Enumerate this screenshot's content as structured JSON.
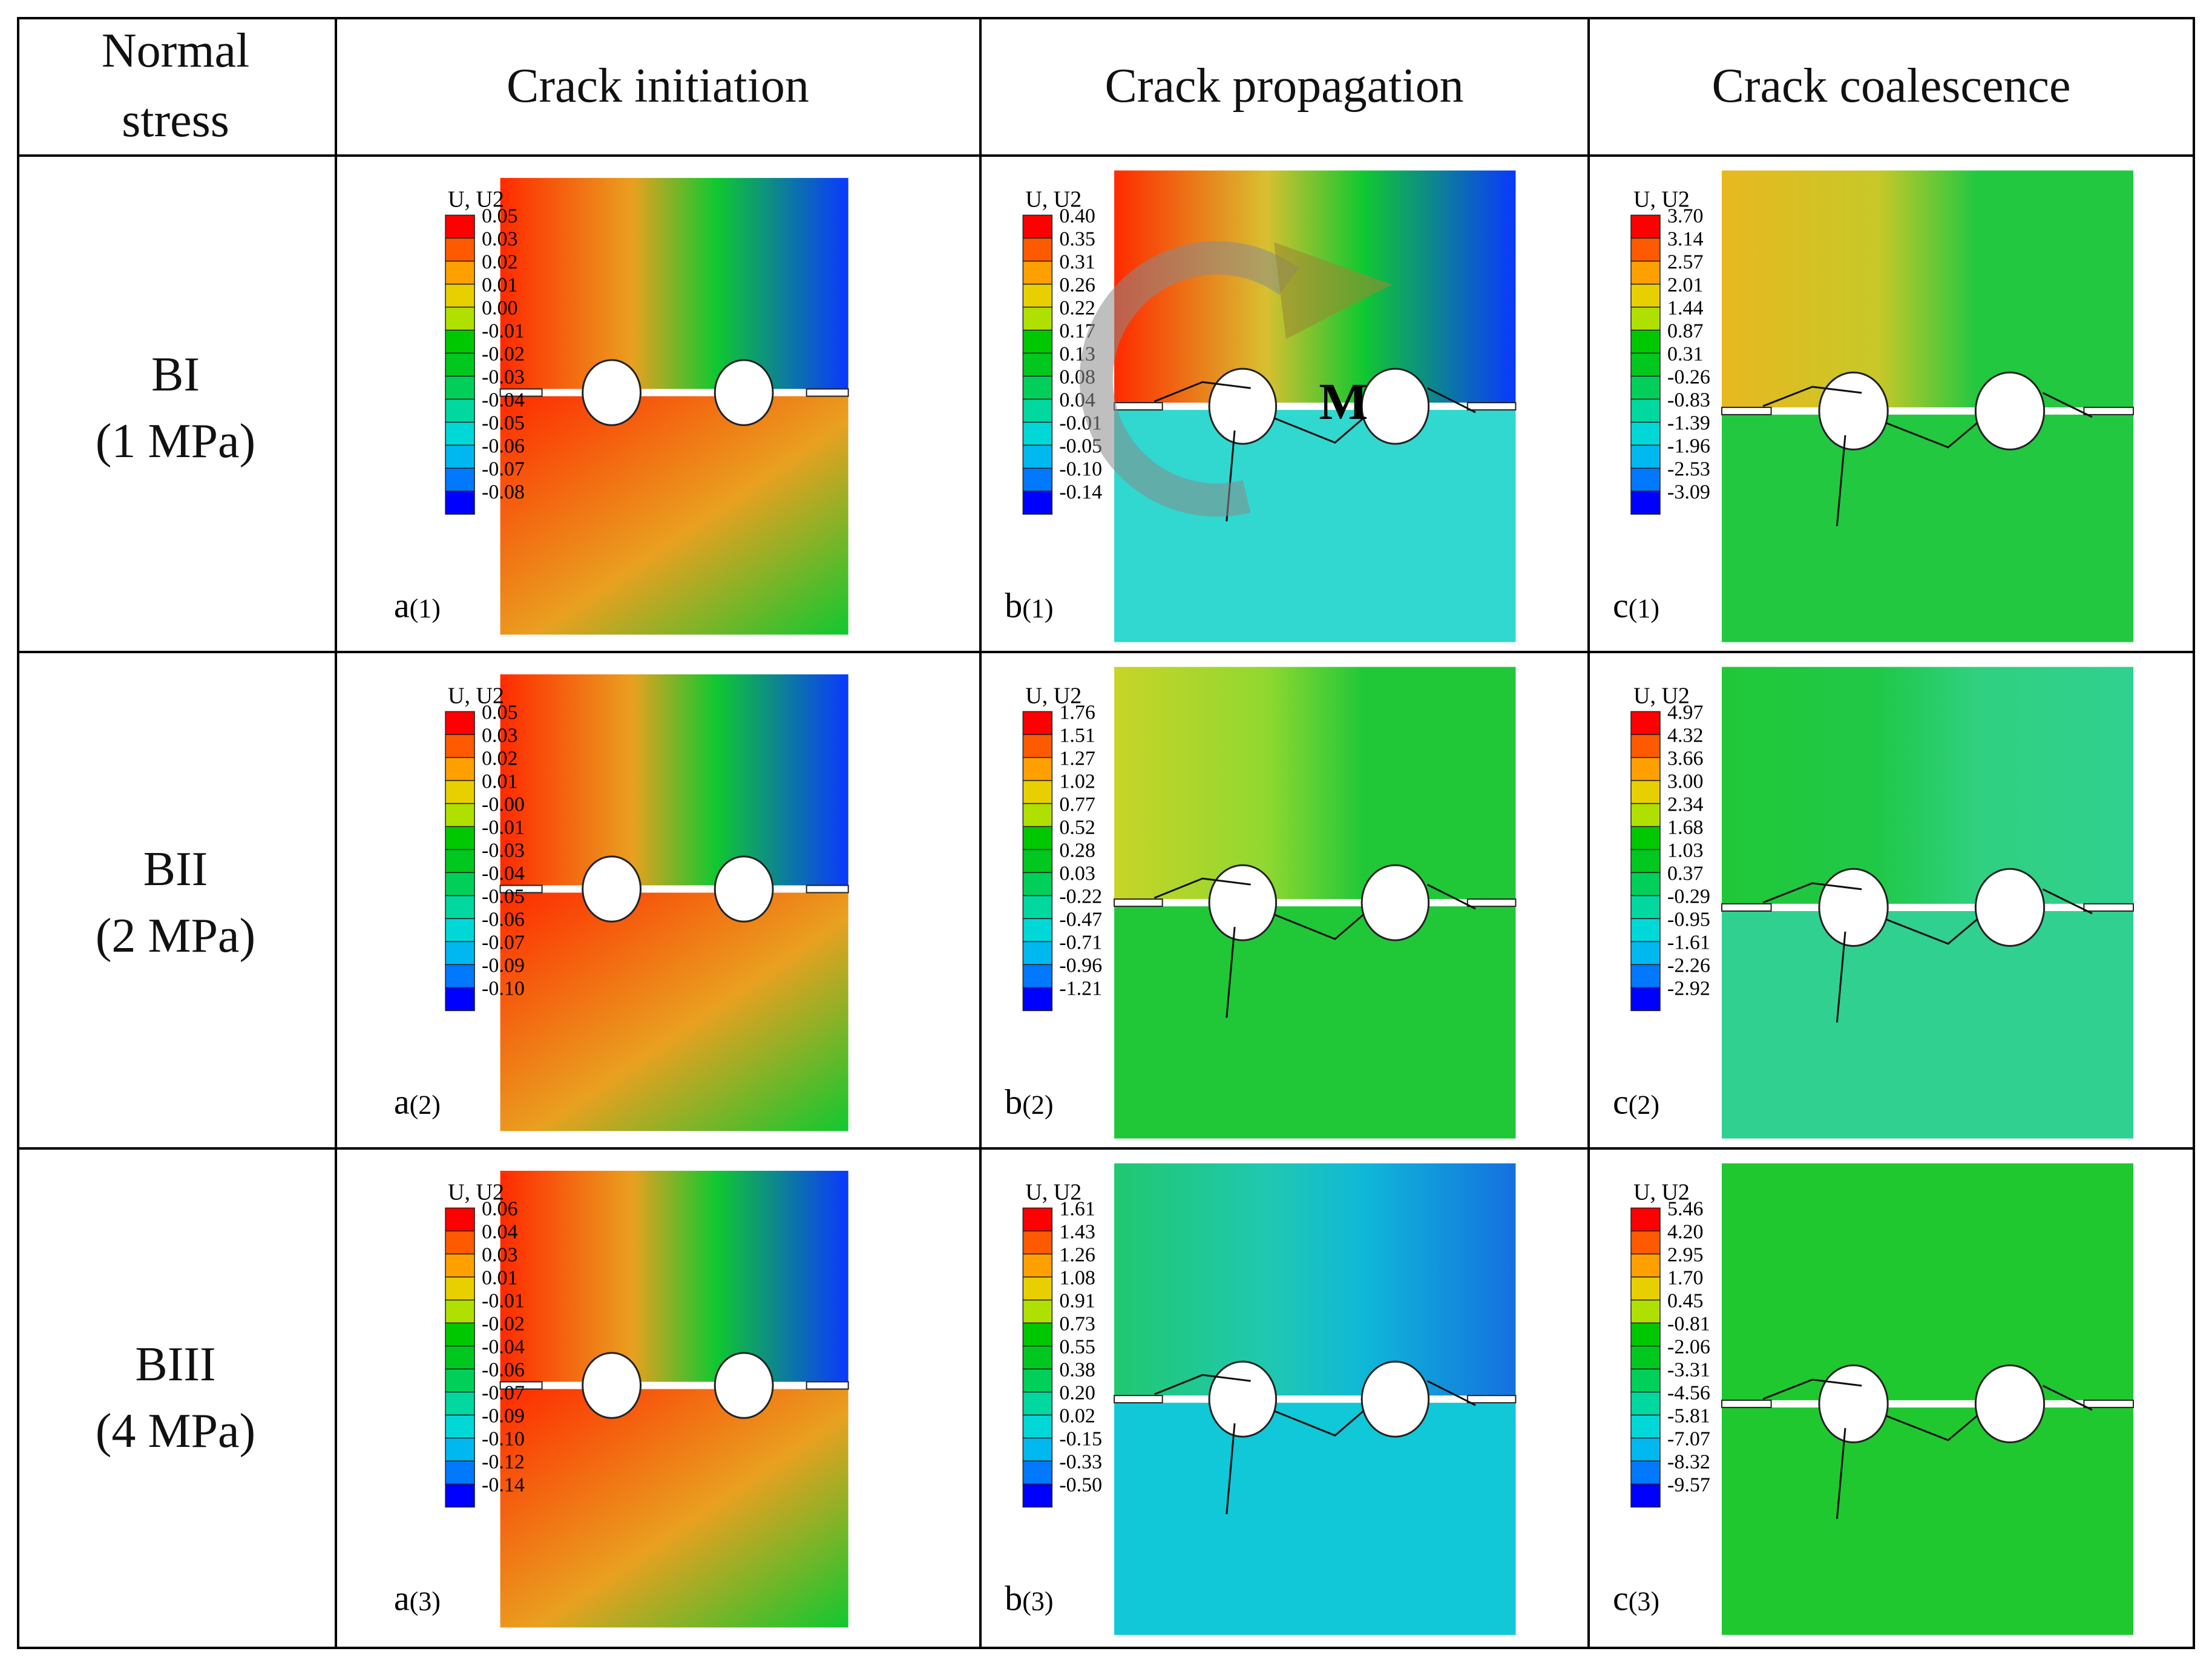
{
  "headers": [
    "Normal stress",
    "Crack initiation",
    "Crack propagation",
    "Crack coalescence"
  ],
  "header_col1_lines": [
    "Normal",
    "stress"
  ],
  "rows": [
    {
      "name": "BI",
      "stress": "(1 MPa)"
    },
    {
      "name": "BII",
      "stress": "(2 MPa)"
    },
    {
      "name": "BIII",
      "stress": "(4 MPa)"
    }
  ],
  "legend_title": "U, U2",
  "moment_label": "M",
  "colorscale": [
    "#ff0000",
    "#ff5a00",
    "#ffa000",
    "#e8d000",
    "#b0e000",
    "#00c800",
    "#00c81e",
    "#00d05a",
    "#00d8a0",
    "#00d8d8",
    "#00b8f0",
    "#0078ff",
    "#0000ff"
  ],
  "panels": [
    {
      "id": "a1",
      "label_letter": "a",
      "label_index": "(1)",
      "colors": [
        "#ff2a00",
        "#e9a020",
        "#10c830",
        "#0a38ff"
      ],
      "legend": [
        "0.05",
        "0.03",
        "0.02",
        "0.01",
        "0.00",
        "-0.01",
        "-0.02",
        "-0.03",
        "-0.04",
        "-0.05",
        "-0.06",
        "-0.07",
        "-0.08"
      ]
    },
    {
      "id": "b1",
      "label_letter": "b",
      "label_index": "(1)",
      "colors": [
        "#ff2a00",
        "#d8c030",
        "#10c830",
        "#0a38ff"
      ],
      "legend": [
        "0.40",
        "0.35",
        "0.31",
        "0.26",
        "0.22",
        "0.17",
        "0.13",
        "0.08",
        "0.04",
        "-0.01",
        "-0.05",
        "-0.10",
        "-0.14"
      ]
    },
    {
      "id": "c1",
      "label_letter": "c",
      "label_index": "(1)",
      "colors": [
        "#e8b820",
        "#c8c828",
        "#22c840",
        "#22c840"
      ],
      "legend": [
        "3.70",
        "3.14",
        "2.57",
        "2.01",
        "1.44",
        "0.87",
        "0.31",
        "-0.26",
        "-0.83",
        "-1.39",
        "-1.96",
        "-2.53",
        "-3.09"
      ]
    },
    {
      "id": "a2",
      "label_letter": "a",
      "label_index": "(2)",
      "colors": [
        "#ff2a00",
        "#e9a020",
        "#10c830",
        "#0a38ff"
      ],
      "legend": [
        "0.05",
        "0.03",
        "0.02",
        "0.01",
        "-0.00",
        "-0.01",
        "-0.03",
        "-0.04",
        "-0.05",
        "-0.06",
        "-0.07",
        "-0.09",
        "-0.10"
      ]
    },
    {
      "id": "b2",
      "label_letter": "b",
      "label_index": "(2)",
      "colors": [
        "#c8d428",
        "#90d830",
        "#20c838",
        "#20c838"
      ],
      "legend": [
        "1.76",
        "1.51",
        "1.27",
        "1.02",
        "0.77",
        "0.52",
        "0.28",
        "0.03",
        "-0.22",
        "-0.47",
        "-0.71",
        "-0.96",
        "-1.21"
      ]
    },
    {
      "id": "c2",
      "label_letter": "c",
      "label_index": "(2)",
      "colors": [
        "#20c838",
        "#20c848",
        "#30d080",
        "#30d090"
      ],
      "legend": [
        "4.97",
        "4.32",
        "3.66",
        "3.00",
        "2.34",
        "1.68",
        "1.03",
        "0.37",
        "-0.29",
        "-0.95",
        "-1.61",
        "-2.26",
        "-2.92"
      ]
    },
    {
      "id": "a3",
      "label_letter": "a",
      "label_index": "(3)",
      "colors": [
        "#ff2a00",
        "#e9a020",
        "#10c830",
        "#0a38ff"
      ],
      "legend": [
        "0.06",
        "0.04",
        "0.03",
        "0.01",
        "-0.01",
        "-0.02",
        "-0.04",
        "-0.06",
        "-0.07",
        "-0.09",
        "-0.10",
        "-0.12",
        "-0.14"
      ]
    },
    {
      "id": "b3",
      "label_letter": "b",
      "label_index": "(3)",
      "colors": [
        "#20c870",
        "#20c8b0",
        "#10b8d8",
        "#1470e0"
      ],
      "legend": [
        "1.61",
        "1.43",
        "1.26",
        "1.08",
        "0.91",
        "0.73",
        "0.55",
        "0.38",
        "0.20",
        "0.02",
        "-0.15",
        "-0.33",
        "-0.50"
      ]
    },
    {
      "id": "c3",
      "label_letter": "c",
      "label_index": "(3)",
      "colors": [
        "#20c830",
        "#20c830",
        "#20c830",
        "#20c830"
      ],
      "legend": [
        "5.46",
        "4.20",
        "2.95",
        "1.70",
        "0.45",
        "-0.81",
        "-2.06",
        "-3.31",
        "-4.56",
        "-5.81",
        "-7.07",
        "-8.32",
        "-9.57"
      ]
    }
  ]
}
